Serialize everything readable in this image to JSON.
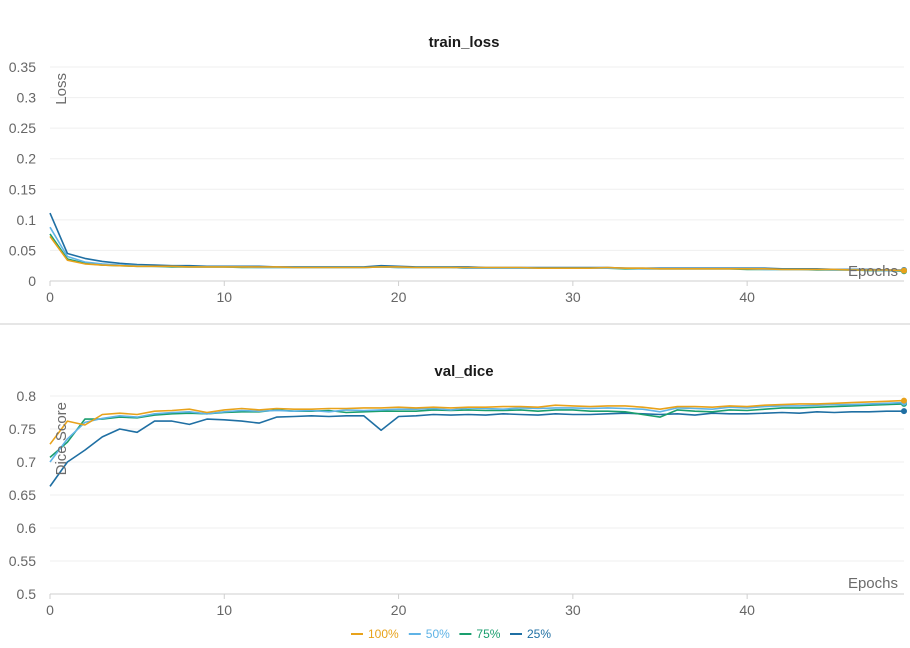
{
  "colors": {
    "100%": "#e8a21a",
    "50%": "#5fb3e6",
    "75%": "#1a9e6e",
    "25%": "#1f6fa3"
  },
  "legend": [
    {
      "name": "100%"
    },
    {
      "name": "50%"
    },
    {
      "name": "75%"
    },
    {
      "name": "25%"
    }
  ],
  "chart_data": [
    {
      "type": "line",
      "title": "train_loss",
      "xlabel": "Epochs",
      "ylabel": "Loss",
      "xlim": [
        0,
        49
      ],
      "ylim": [
        0,
        0.35
      ],
      "xticks": [
        0,
        10,
        20,
        30,
        40
      ],
      "xtick_labels": [
        "0",
        "10",
        "20",
        "30",
        "40"
      ],
      "yticks": [
        0,
        0.05,
        0.1,
        0.15,
        0.2,
        0.25,
        0.3,
        0.35
      ],
      "ytick_labels": [
        "0",
        "0.05",
        "0.1",
        "0.15",
        "0.2",
        "0.25",
        "0.3",
        "0.35"
      ],
      "grid": true,
      "x": [
        0,
        1,
        2,
        3,
        4,
        5,
        6,
        7,
        8,
        9,
        10,
        11,
        12,
        13,
        14,
        15,
        16,
        17,
        18,
        19,
        20,
        21,
        22,
        23,
        24,
        25,
        26,
        27,
        28,
        29,
        30,
        31,
        32,
        33,
        34,
        35,
        36,
        37,
        38,
        39,
        40,
        41,
        42,
        43,
        44,
        45,
        46,
        47,
        48,
        49
      ],
      "series": [
        {
          "name": "100%",
          "values": [
            0.073,
            0.034,
            0.028,
            0.026,
            0.025,
            0.024,
            0.024,
            0.024,
            0.023,
            0.023,
            0.023,
            0.023,
            0.023,
            0.023,
            0.022,
            0.022,
            0.022,
            0.022,
            0.022,
            0.023,
            0.023,
            0.022,
            0.022,
            0.022,
            0.022,
            0.022,
            0.022,
            0.022,
            0.021,
            0.021,
            0.021,
            0.021,
            0.022,
            0.021,
            0.021,
            0.02,
            0.02,
            0.02,
            0.02,
            0.02,
            0.02,
            0.02,
            0.019,
            0.019,
            0.019,
            0.019,
            0.018,
            0.018,
            0.018,
            0.017
          ]
        },
        {
          "name": "50%",
          "values": [
            0.088,
            0.04,
            0.031,
            0.028,
            0.026,
            0.025,
            0.024,
            0.024,
            0.023,
            0.023,
            0.023,
            0.023,
            0.022,
            0.022,
            0.022,
            0.022,
            0.022,
            0.022,
            0.022,
            0.023,
            0.022,
            0.022,
            0.022,
            0.022,
            0.021,
            0.021,
            0.021,
            0.021,
            0.021,
            0.021,
            0.021,
            0.021,
            0.021,
            0.021,
            0.02,
            0.02,
            0.02,
            0.02,
            0.02,
            0.02,
            0.02,
            0.019,
            0.019,
            0.019,
            0.019,
            0.018,
            0.018,
            0.018,
            0.017,
            0.017
          ]
        },
        {
          "name": "75%",
          "values": [
            0.077,
            0.036,
            0.029,
            0.026,
            0.025,
            0.024,
            0.024,
            0.023,
            0.023,
            0.023,
            0.023,
            0.022,
            0.022,
            0.022,
            0.022,
            0.022,
            0.022,
            0.022,
            0.022,
            0.023,
            0.022,
            0.022,
            0.022,
            0.022,
            0.021,
            0.021,
            0.021,
            0.021,
            0.021,
            0.021,
            0.021,
            0.021,
            0.021,
            0.02,
            0.02,
            0.02,
            0.02,
            0.02,
            0.02,
            0.02,
            0.019,
            0.019,
            0.019,
            0.019,
            0.018,
            0.018,
            0.018,
            0.017,
            0.017,
            0.016
          ]
        },
        {
          "name": "25%",
          "values": [
            0.111,
            0.045,
            0.037,
            0.032,
            0.029,
            0.027,
            0.026,
            0.025,
            0.025,
            0.024,
            0.024,
            0.024,
            0.024,
            0.023,
            0.023,
            0.023,
            0.023,
            0.023,
            0.023,
            0.025,
            0.024,
            0.023,
            0.023,
            0.023,
            0.023,
            0.022,
            0.022,
            0.022,
            0.022,
            0.022,
            0.022,
            0.022,
            0.022,
            0.021,
            0.021,
            0.021,
            0.021,
            0.021,
            0.021,
            0.021,
            0.021,
            0.021,
            0.02,
            0.02,
            0.02,
            0.019,
            0.019,
            0.019,
            0.018,
            0.018
          ]
        }
      ]
    },
    {
      "type": "line",
      "title": "val_dice",
      "xlabel": "Epochs",
      "ylabel": "Dice Score",
      "xlim": [
        0,
        49
      ],
      "ylim": [
        0.5,
        0.8
      ],
      "xticks": [
        0,
        10,
        20,
        30,
        40
      ],
      "xtick_labels": [
        "0",
        "10",
        "20",
        "30",
        "40"
      ],
      "yticks": [
        0.5,
        0.55,
        0.6,
        0.65,
        0.7,
        0.75,
        0.8
      ],
      "ytick_labels": [
        "0.5",
        "0.55",
        "0.6",
        "0.65",
        "0.7",
        "0.75",
        "0.8"
      ],
      "grid": true,
      "legend_position": "bottom-center",
      "x": [
        0,
        1,
        2,
        3,
        4,
        5,
        6,
        7,
        8,
        9,
        10,
        11,
        12,
        13,
        14,
        15,
        16,
        17,
        18,
        19,
        20,
        21,
        22,
        23,
        24,
        25,
        26,
        27,
        28,
        29,
        30,
        31,
        32,
        33,
        34,
        35,
        36,
        37,
        38,
        39,
        40,
        41,
        42,
        43,
        44,
        45,
        46,
        47,
        48,
        49
      ],
      "series": [
        {
          "name": "100%",
          "values": [
            0.727,
            0.762,
            0.756,
            0.772,
            0.774,
            0.772,
            0.777,
            0.778,
            0.78,
            0.775,
            0.779,
            0.781,
            0.779,
            0.781,
            0.78,
            0.78,
            0.781,
            0.781,
            0.782,
            0.782,
            0.783,
            0.782,
            0.783,
            0.782,
            0.783,
            0.783,
            0.784,
            0.784,
            0.783,
            0.786,
            0.785,
            0.784,
            0.785,
            0.785,
            0.783,
            0.78,
            0.784,
            0.784,
            0.783,
            0.785,
            0.784,
            0.786,
            0.787,
            0.788,
            0.788,
            0.789,
            0.79,
            0.791,
            0.792,
            0.793
          ]
        },
        {
          "name": "50%",
          "values": [
            0.7,
            0.735,
            0.76,
            0.766,
            0.77,
            0.768,
            0.773,
            0.775,
            0.776,
            0.773,
            0.776,
            0.778,
            0.777,
            0.778,
            0.777,
            0.778,
            0.776,
            0.779,
            0.778,
            0.779,
            0.78,
            0.78,
            0.781,
            0.779,
            0.782,
            0.781,
            0.78,
            0.782,
            0.781,
            0.782,
            0.782,
            0.781,
            0.782,
            0.781,
            0.78,
            0.776,
            0.782,
            0.781,
            0.78,
            0.783,
            0.782,
            0.784,
            0.785,
            0.785,
            0.786,
            0.787,
            0.787,
            0.788,
            0.789,
            0.79
          ]
        },
        {
          "name": "75%",
          "values": [
            0.707,
            0.73,
            0.765,
            0.765,
            0.768,
            0.767,
            0.771,
            0.773,
            0.774,
            0.773,
            0.775,
            0.776,
            0.776,
            0.779,
            0.777,
            0.777,
            0.778,
            0.775,
            0.776,
            0.777,
            0.777,
            0.777,
            0.779,
            0.778,
            0.779,
            0.778,
            0.778,
            0.779,
            0.777,
            0.779,
            0.779,
            0.777,
            0.777,
            0.776,
            0.772,
            0.768,
            0.779,
            0.777,
            0.776,
            0.779,
            0.778,
            0.78,
            0.782,
            0.782,
            0.783,
            0.784,
            0.785,
            0.786,
            0.787,
            0.788
          ]
        },
        {
          "name": "25%",
          "values": [
            0.663,
            0.7,
            0.718,
            0.738,
            0.75,
            0.745,
            0.762,
            0.762,
            0.757,
            0.765,
            0.764,
            0.762,
            0.759,
            0.768,
            0.769,
            0.77,
            0.769,
            0.77,
            0.77,
            0.748,
            0.769,
            0.77,
            0.772,
            0.771,
            0.772,
            0.771,
            0.773,
            0.772,
            0.771,
            0.773,
            0.772,
            0.772,
            0.773,
            0.774,
            0.773,
            0.772,
            0.773,
            0.771,
            0.774,
            0.773,
            0.773,
            0.774,
            0.775,
            0.774,
            0.776,
            0.775,
            0.776,
            0.776,
            0.777,
            0.777
          ]
        }
      ]
    }
  ]
}
